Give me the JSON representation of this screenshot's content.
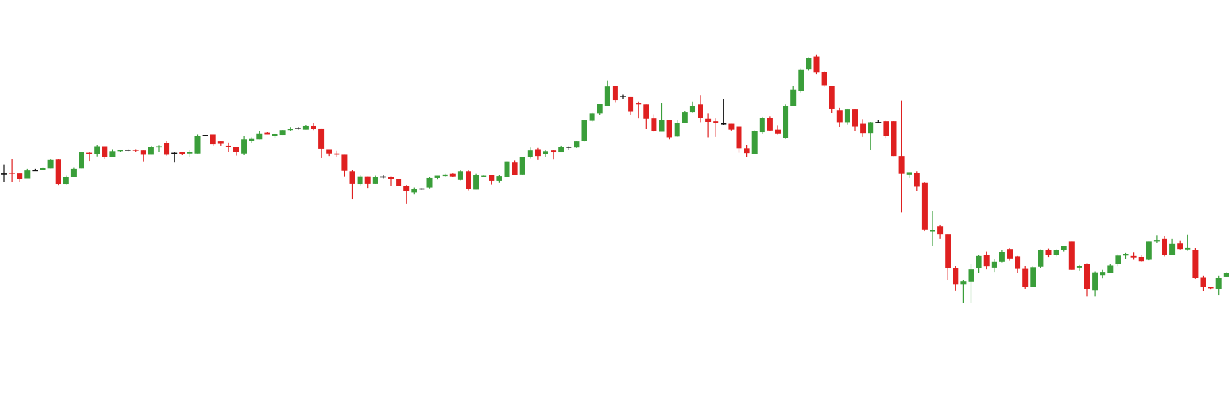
{
  "chart_data": {
    "type": "candlestick",
    "title": "",
    "xlabel": "",
    "ylabel": "",
    "x_axis_visible": false,
    "y_axis_visible": false,
    "grid": false,
    "legend": "none",
    "ylim": [
      0,
      100
    ],
    "colors": {
      "up": "#3a9e3a",
      "down": "#df2020",
      "doji": "#111111",
      "background": "#ffffff"
    },
    "candles": [
      {
        "o": 57.9,
        "h": 60.1,
        "l": 55.8,
        "c": 57.9
      },
      {
        "o": 58.1,
        "h": 61.6,
        "l": 55.8,
        "c": 57.9
      },
      {
        "o": 57.9,
        "h": 57.9,
        "l": 55.7,
        "c": 56.4
      },
      {
        "o": 56.6,
        "h": 59.0,
        "l": 56.6,
        "c": 58.6
      },
      {
        "o": 58.6,
        "h": 59.0,
        "l": 58.6,
        "c": 58.7
      },
      {
        "o": 58.7,
        "h": 59.5,
        "l": 58.7,
        "c": 59.3
      },
      {
        "o": 59.1,
        "h": 61.4,
        "l": 59.1,
        "c": 61.3
      },
      {
        "o": 61.4,
        "h": 61.6,
        "l": 54.9,
        "c": 55.1
      },
      {
        "o": 55.1,
        "h": 57.3,
        "l": 55.0,
        "c": 56.9
      },
      {
        "o": 56.9,
        "h": 59.4,
        "l": 56.9,
        "c": 59.0
      },
      {
        "o": 59.1,
        "h": 63.3,
        "l": 59.1,
        "c": 63.2
      },
      {
        "o": 63.1,
        "h": 63.3,
        "l": 60.9,
        "c": 62.8
      },
      {
        "o": 62.8,
        "h": 65.1,
        "l": 62.2,
        "c": 64.7
      },
      {
        "o": 64.7,
        "h": 64.7,
        "l": 61.6,
        "c": 62.1
      },
      {
        "o": 62.1,
        "h": 64.0,
        "l": 62.1,
        "c": 63.5
      },
      {
        "o": 63.5,
        "h": 63.9,
        "l": 63.3,
        "c": 63.9
      },
      {
        "o": 63.8,
        "h": 64.0,
        "l": 63.5,
        "c": 63.9
      },
      {
        "o": 63.9,
        "h": 64.0,
        "l": 63.3,
        "c": 63.7
      },
      {
        "o": 63.7,
        "h": 63.7,
        "l": 60.8,
        "c": 62.6
      },
      {
        "o": 62.6,
        "h": 64.8,
        "l": 62.6,
        "c": 64.5
      },
      {
        "o": 64.5,
        "h": 64.9,
        "l": 63.3,
        "c": 64.7
      },
      {
        "o": 65.6,
        "h": 66.1,
        "l": 62.4,
        "c": 62.6
      },
      {
        "o": 63.1,
        "h": 63.3,
        "l": 60.7,
        "c": 63.1
      },
      {
        "o": 63.2,
        "h": 63.2,
        "l": 62.5,
        "c": 62.8
      },
      {
        "o": 62.9,
        "h": 63.9,
        "l": 62.1,
        "c": 63.3
      },
      {
        "o": 62.9,
        "h": 67.7,
        "l": 62.9,
        "c": 67.4
      },
      {
        "o": 67.6,
        "h": 67.6,
        "l": 67.3,
        "c": 67.6
      },
      {
        "o": 67.7,
        "h": 67.7,
        "l": 64.8,
        "c": 65.3
      },
      {
        "o": 66.0,
        "h": 66.0,
        "l": 64.8,
        "c": 65.4
      },
      {
        "o": 64.8,
        "h": 65.7,
        "l": 63.3,
        "c": 64.5
      },
      {
        "o": 64.6,
        "h": 64.6,
        "l": 62.4,
        "c": 63.3
      },
      {
        "o": 62.9,
        "h": 67.3,
        "l": 62.5,
        "c": 66.5
      },
      {
        "o": 66.1,
        "h": 67.0,
        "l": 65.6,
        "c": 66.6
      },
      {
        "o": 66.5,
        "h": 68.6,
        "l": 66.5,
        "c": 68.0
      },
      {
        "o": 68.2,
        "h": 68.3,
        "l": 67.7,
        "c": 67.7
      },
      {
        "o": 67.3,
        "h": 68.0,
        "l": 66.9,
        "c": 67.8
      },
      {
        "o": 67.6,
        "h": 68.8,
        "l": 67.6,
        "c": 68.8
      },
      {
        "o": 68.8,
        "h": 69.5,
        "l": 68.6,
        "c": 69.1
      },
      {
        "o": 69.3,
        "h": 69.7,
        "l": 68.9,
        "c": 69.2
      },
      {
        "o": 68.9,
        "h": 70.1,
        "l": 68.9,
        "c": 69.9
      },
      {
        "o": 69.9,
        "h": 70.6,
        "l": 68.8,
        "c": 69.1
      },
      {
        "o": 69.2,
        "h": 69.2,
        "l": 61.8,
        "c": 64.1
      },
      {
        "o": 64.0,
        "h": 64.0,
        "l": 62.3,
        "c": 62.9
      },
      {
        "o": 62.9,
        "h": 63.6,
        "l": 62.0,
        "c": 62.6
      },
      {
        "o": 62.6,
        "h": 62.6,
        "l": 57.1,
        "c": 58.5
      },
      {
        "o": 58.4,
        "h": 58.7,
        "l": 51.4,
        "c": 55.3
      },
      {
        "o": 55.1,
        "h": 57.4,
        "l": 54.8,
        "c": 57.1
      },
      {
        "o": 57.1,
        "h": 57.1,
        "l": 54.2,
        "c": 55.3
      },
      {
        "o": 55.3,
        "h": 57.3,
        "l": 55.2,
        "c": 57.0
      },
      {
        "o": 57.0,
        "h": 57.4,
        "l": 56.6,
        "c": 57.1
      },
      {
        "o": 57.0,
        "h": 57.1,
        "l": 54.6,
        "c": 56.5
      },
      {
        "o": 56.4,
        "h": 56.4,
        "l": 54.6,
        "c": 54.7
      },
      {
        "o": 54.7,
        "h": 54.9,
        "l": 50.2,
        "c": 53.4
      },
      {
        "o": 53.1,
        "h": 54.3,
        "l": 52.6,
        "c": 54.0
      },
      {
        "o": 54.1,
        "h": 54.2,
        "l": 53.7,
        "c": 54.1
      },
      {
        "o": 54.3,
        "h": 56.9,
        "l": 54.1,
        "c": 56.7
      },
      {
        "o": 56.7,
        "h": 57.3,
        "l": 56.3,
        "c": 57.3
      },
      {
        "o": 57.2,
        "h": 57.8,
        "l": 56.9,
        "c": 57.6
      },
      {
        "o": 57.8,
        "h": 57.9,
        "l": 57.0,
        "c": 57.1
      },
      {
        "o": 56.2,
        "h": 58.6,
        "l": 56.1,
        "c": 58.4
      },
      {
        "o": 58.4,
        "h": 58.8,
        "l": 53.6,
        "c": 53.9
      },
      {
        "o": 53.8,
        "h": 57.8,
        "l": 53.8,
        "c": 57.5
      },
      {
        "o": 56.9,
        "h": 57.5,
        "l": 56.9,
        "c": 57.3
      },
      {
        "o": 57.4,
        "h": 57.4,
        "l": 55.0,
        "c": 56.0
      },
      {
        "o": 56.0,
        "h": 57.4,
        "l": 55.5,
        "c": 57.2
      },
      {
        "o": 57.0,
        "h": 60.9,
        "l": 57.0,
        "c": 60.8
      },
      {
        "o": 60.7,
        "h": 61.2,
        "l": 57.4,
        "c": 57.5
      },
      {
        "o": 57.6,
        "h": 62.1,
        "l": 57.6,
        "c": 62.0
      },
      {
        "o": 62.0,
        "h": 64.4,
        "l": 61.7,
        "c": 63.7
      },
      {
        "o": 64.0,
        "h": 64.3,
        "l": 61.3,
        "c": 62.3
      },
      {
        "o": 62.7,
        "h": 63.9,
        "l": 62.0,
        "c": 63.5
      },
      {
        "o": 63.7,
        "h": 63.9,
        "l": 61.4,
        "c": 63.2
      },
      {
        "o": 63.2,
        "h": 64.8,
        "l": 63.2,
        "c": 64.6
      },
      {
        "o": 64.6,
        "h": 64.7,
        "l": 63.9,
        "c": 64.6
      },
      {
        "o": 64.4,
        "h": 66.0,
        "l": 64.3,
        "c": 66.0
      },
      {
        "o": 66.1,
        "h": 71.4,
        "l": 66.0,
        "c": 71.3
      },
      {
        "o": 71.2,
        "h": 73.3,
        "l": 71.0,
        "c": 73.0
      },
      {
        "o": 73.0,
        "h": 75.4,
        "l": 72.6,
        "c": 75.4
      },
      {
        "o": 75.0,
        "h": 81.4,
        "l": 75.1,
        "c": 79.9
      },
      {
        "o": 80.0,
        "h": 80.0,
        "l": 75.8,
        "c": 76.4
      },
      {
        "o": 77.4,
        "h": 77.9,
        "l": 76.7,
        "c": 77.4
      },
      {
        "o": 77.3,
        "h": 77.3,
        "l": 72.6,
        "c": 73.5
      },
      {
        "o": 75.7,
        "h": 76.1,
        "l": 71.8,
        "c": 75.3
      },
      {
        "o": 75.3,
        "h": 75.3,
        "l": 69.1,
        "c": 71.7
      },
      {
        "o": 71.8,
        "h": 72.8,
        "l": 68.4,
        "c": 68.6
      },
      {
        "o": 68.4,
        "h": 75.7,
        "l": 68.4,
        "c": 71.4
      },
      {
        "o": 71.3,
        "h": 71.3,
        "l": 66.5,
        "c": 67.0
      },
      {
        "o": 67.2,
        "h": 71.3,
        "l": 67.1,
        "c": 70.6
      },
      {
        "o": 70.6,
        "h": 73.7,
        "l": 70.6,
        "c": 73.4
      },
      {
        "o": 73.4,
        "h": 76.1,
        "l": 73.3,
        "c": 75.0
      },
      {
        "o": 75.3,
        "h": 77.6,
        "l": 70.7,
        "c": 71.9
      },
      {
        "o": 71.7,
        "h": 73.0,
        "l": 67.0,
        "c": 70.9
      },
      {
        "o": 71.1,
        "h": 71.8,
        "l": 67.1,
        "c": 70.6
      },
      {
        "o": 70.5,
        "h": 76.6,
        "l": 70.2,
        "c": 70.6
      },
      {
        "o": 70.5,
        "h": 70.5,
        "l": 68.7,
        "c": 68.9
      },
      {
        "o": 69.8,
        "h": 69.8,
        "l": 63.1,
        "c": 64.2
      },
      {
        "o": 64.2,
        "h": 65.0,
        "l": 62.1,
        "c": 63.0
      },
      {
        "o": 62.8,
        "h": 68.7,
        "l": 62.8,
        "c": 68.5
      },
      {
        "o": 68.3,
        "h": 72.2,
        "l": 67.8,
        "c": 72.0
      },
      {
        "o": 72.0,
        "h": 72.3,
        "l": 68.6,
        "c": 68.7
      },
      {
        "o": 68.9,
        "h": 70.0,
        "l": 67.7,
        "c": 68.0
      },
      {
        "o": 66.8,
        "h": 75.3,
        "l": 66.6,
        "c": 75.0
      },
      {
        "o": 74.9,
        "h": 80.0,
        "l": 74.9,
        "c": 79.1
      },
      {
        "o": 78.7,
        "h": 84.4,
        "l": 78.4,
        "c": 84.2
      },
      {
        "o": 84.3,
        "h": 87.2,
        "l": 83.9,
        "c": 87.1
      },
      {
        "o": 87.4,
        "h": 87.9,
        "l": 82.9,
        "c": 83.4
      },
      {
        "o": 83.5,
        "h": 83.8,
        "l": 79.8,
        "c": 80.2
      },
      {
        "o": 80.1,
        "h": 80.1,
        "l": 73.1,
        "c": 74.3
      },
      {
        "o": 73.9,
        "h": 74.5,
        "l": 69.7,
        "c": 70.7
      },
      {
        "o": 70.7,
        "h": 74.3,
        "l": 70.3,
        "c": 74.1
      },
      {
        "o": 74.1,
        "h": 74.2,
        "l": 68.5,
        "c": 69.8
      },
      {
        "o": 70.5,
        "h": 71.6,
        "l": 67.1,
        "c": 68.1
      },
      {
        "o": 68.1,
        "h": 70.9,
        "l": 63.9,
        "c": 70.7
      },
      {
        "o": 70.9,
        "h": 71.4,
        "l": 70.6,
        "c": 70.8
      },
      {
        "o": 71.1,
        "h": 71.2,
        "l": 66.7,
        "c": 67.4
      },
      {
        "o": 71.1,
        "h": 71.1,
        "l": 62.3,
        "c": 62.3
      },
      {
        "o": 62.3,
        "h": 76.3,
        "l": 48.0,
        "c": 57.8
      },
      {
        "o": 57.6,
        "h": 58.2,
        "l": 56.7,
        "c": 58.2
      },
      {
        "o": 58.1,
        "h": 58.4,
        "l": 53.4,
        "c": 54.5
      },
      {
        "o": 55.5,
        "h": 55.7,
        "l": 43.3,
        "c": 43.7
      },
      {
        "o": 43.3,
        "h": 48.4,
        "l": 39.6,
        "c": 43.5
      },
      {
        "o": 44.5,
        "h": 44.9,
        "l": 41.4,
        "c": 42.4
      },
      {
        "o": 42.4,
        "h": 42.4,
        "l": 30.9,
        "c": 33.8
      },
      {
        "o": 33.8,
        "h": 34.5,
        "l": 28.2,
        "c": 29.7
      },
      {
        "o": 29.7,
        "h": 30.9,
        "l": 25.1,
        "c": 30.6
      },
      {
        "o": 30.5,
        "h": 35.0,
        "l": 25.1,
        "c": 33.6
      },
      {
        "o": 33.8,
        "h": 37.2,
        "l": 32.7,
        "c": 37.0
      },
      {
        "o": 37.2,
        "h": 38.1,
        "l": 33.6,
        "c": 34.3
      },
      {
        "o": 34.0,
        "h": 36.2,
        "l": 32.9,
        "c": 35.6
      },
      {
        "o": 35.6,
        "h": 38.5,
        "l": 35.3,
        "c": 38.0
      },
      {
        "o": 38.7,
        "h": 39.0,
        "l": 35.8,
        "c": 36.3
      },
      {
        "o": 36.9,
        "h": 37.0,
        "l": 32.7,
        "c": 33.7
      },
      {
        "o": 33.7,
        "h": 34.4,
        "l": 28.7,
        "c": 29.1
      },
      {
        "o": 29.1,
        "h": 34.3,
        "l": 29.1,
        "c": 34.1
      },
      {
        "o": 34.2,
        "h": 38.6,
        "l": 33.9,
        "c": 38.4
      },
      {
        "o": 38.5,
        "h": 38.8,
        "l": 36.6,
        "c": 37.2
      },
      {
        "o": 37.2,
        "h": 38.7,
        "l": 36.9,
        "c": 38.4
      },
      {
        "o": 38.5,
        "h": 39.6,
        "l": 38.1,
        "c": 39.5
      },
      {
        "o": 40.6,
        "h": 40.6,
        "l": 33.5,
        "c": 33.5
      },
      {
        "o": 34.0,
        "h": 34.7,
        "l": 33.3,
        "c": 34.4
      },
      {
        "o": 35.0,
        "h": 35.1,
        "l": 26.7,
        "c": 28.6
      },
      {
        "o": 28.3,
        "h": 33.0,
        "l": 26.7,
        "c": 32.8
      },
      {
        "o": 32.0,
        "h": 33.5,
        "l": 31.3,
        "c": 32.9
      },
      {
        "o": 32.7,
        "h": 34.9,
        "l": 32.6,
        "c": 34.6
      },
      {
        "o": 34.9,
        "h": 37.4,
        "l": 34.3,
        "c": 37.1
      },
      {
        "o": 37.1,
        "h": 37.7,
        "l": 36.2,
        "c": 37.5
      },
      {
        "o": 37.0,
        "h": 37.8,
        "l": 36.0,
        "c": 36.5
      },
      {
        "o": 36.8,
        "h": 37.2,
        "l": 35.5,
        "c": 35.7
      },
      {
        "o": 36.0,
        "h": 40.6,
        "l": 35.9,
        "c": 40.6
      },
      {
        "o": 40.6,
        "h": 42.2,
        "l": 40.2,
        "c": 41.0
      },
      {
        "o": 41.4,
        "h": 41.9,
        "l": 36.9,
        "c": 37.3
      },
      {
        "o": 37.3,
        "h": 41.4,
        "l": 37.3,
        "c": 40.0
      },
      {
        "o": 40.1,
        "h": 40.9,
        "l": 38.6,
        "c": 38.7
      },
      {
        "o": 38.6,
        "h": 42.3,
        "l": 38.3,
        "c": 39.1
      },
      {
        "o": 38.5,
        "h": 38.9,
        "l": 31.2,
        "c": 31.5
      },
      {
        "o": 31.6,
        "h": 31.9,
        "l": 28.1,
        "c": 29.2
      },
      {
        "o": 29.2,
        "h": 29.2,
        "l": 28.5,
        "c": 28.8
      },
      {
        "o": 28.7,
        "h": 31.9,
        "l": 27.1,
        "c": 31.5
      },
      {
        "o": 31.7,
        "h": 32.8,
        "l": 31.7,
        "c": 32.7
      },
      {
        "o": 31.4,
        "h": 35.5,
        "l": 30.5,
        "c": 35.4
      },
      {
        "o": 35.4,
        "h": 38.1,
        "l": 35.2,
        "c": 35.7
      }
    ]
  }
}
